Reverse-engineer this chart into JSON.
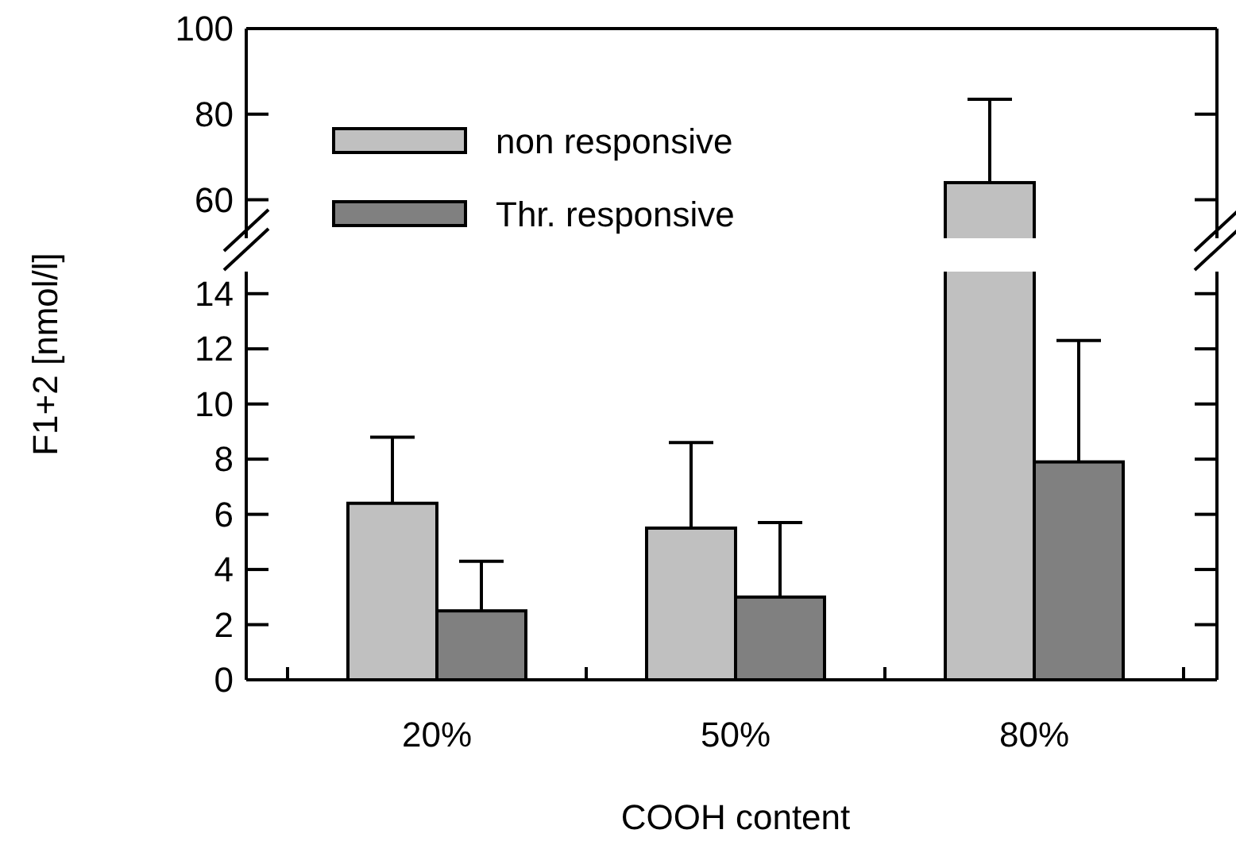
{
  "chart_data": [
    {
      "type": "bar",
      "ylabel": "F1+2 [nmol/l]",
      "series": [
        {
          "name": "non responsive",
          "color": "#c0c0c0",
          "values": [
            null,
            null,
            64
          ],
          "errors": [
            null,
            null,
            [
              64,
              83.5
            ]
          ]
        },
        {
          "name": "Thr. responsive",
          "color": "#808080",
          "values": [
            null,
            null,
            null
          ]
        }
      ],
      "ylim": [
        51,
        100
      ],
      "yticks": [
        60,
        80,
        100
      ],
      "tick_labels": "y",
      "legend": "left",
      "grid": false
    },
    {
      "type": "bar",
      "xlabel": "COOH content",
      "categories": [
        "20%",
        "50%",
        "80%"
      ],
      "series": [
        {
          "color": "#c0c0c0",
          "values": [
            6.4,
            5.5,
            null
          ],
          "errors": [
            [
              6.4,
              8.8
            ],
            [
              5.5,
              8.6
            ],
            null
          ]
        },
        {
          "color": "#808080",
          "values": [
            2.5,
            3.0,
            7.9
          ],
          "errors": [
            [
              2.5,
              4.3
            ],
            [
              3.0,
              5.7
            ],
            [
              7.9,
              12.3
            ]
          ]
        }
      ],
      "ylim": [
        0,
        14.8
      ],
      "yticks": [
        0,
        2,
        4,
        6,
        8,
        10,
        12,
        14
      ],
      "grid": false
    }
  ]
}
